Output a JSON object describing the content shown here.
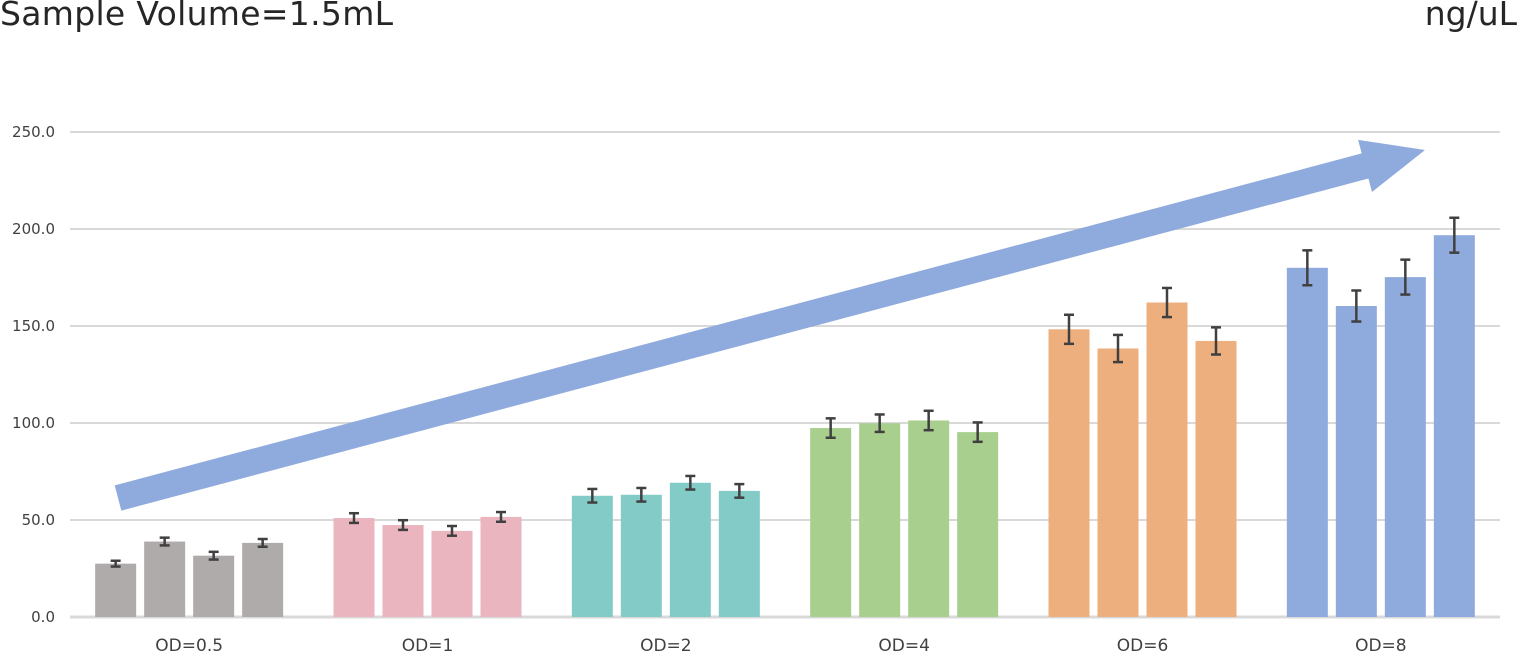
{
  "chart_data": {
    "type": "bar",
    "title": "Sample Volume=1.5mL",
    "unit_label": "ng/uL",
    "xlabel": "",
    "ylabel": "",
    "ylim": [
      0,
      250
    ],
    "y_ticks": [
      "0.0",
      "50.0",
      "100.0",
      "150.0",
      "200.0",
      "250.0"
    ],
    "y_tick_values": [
      0,
      50,
      100,
      150,
      200,
      250
    ],
    "grid": true,
    "legend": "none",
    "trend_arrow": "rising trend from OD=0.5 group to OD=8 group",
    "categories": [
      "OD=0.5",
      "OD=1",
      "OD=2",
      "OD=4",
      "OD=6",
      "OD=8"
    ],
    "groups": [
      {
        "label": "OD=0.5",
        "color": "#afabab",
        "values": [
          27.5,
          38.9,
          31.6,
          38.2
        ],
        "errors": [
          1.5,
          2.0,
          2.0,
          2.0
        ]
      },
      {
        "label": "OD=1",
        "color": "#eab5bf",
        "values": [
          51.0,
          47.4,
          44.4,
          51.6
        ],
        "errors": [
          2.5,
          2.5,
          2.5,
          2.5
        ]
      },
      {
        "label": "OD=2",
        "color": "#83cbc7",
        "values": [
          62.5,
          63.0,
          69.2,
          65.0
        ],
        "errors": [
          3.5,
          3.5,
          3.5,
          3.5
        ]
      },
      {
        "label": "OD=4",
        "color": "#a8cf8e",
        "values": [
          97.4,
          99.9,
          101.3,
          95.3
        ],
        "errors": [
          5.0,
          4.5,
          5.0,
          5.0
        ]
      },
      {
        "label": "OD=6",
        "color": "#eeaf7e",
        "values": [
          148.3,
          138.4,
          162.1,
          142.3
        ],
        "errors": [
          7.5,
          7.0,
          7.5,
          7.0
        ]
      },
      {
        "label": "OD=8",
        "color": "#8faadc",
        "values": [
          180.0,
          160.3,
          175.2,
          196.8
        ],
        "errors": [
          9.0,
          8.0,
          9.0,
          9.0
        ]
      }
    ],
    "colors": {
      "grid": "#d9d9d9",
      "axis": "#d9d9d9",
      "tick_text": "#404040",
      "error_bar": "#404040",
      "arrow": "#8faadc"
    }
  }
}
